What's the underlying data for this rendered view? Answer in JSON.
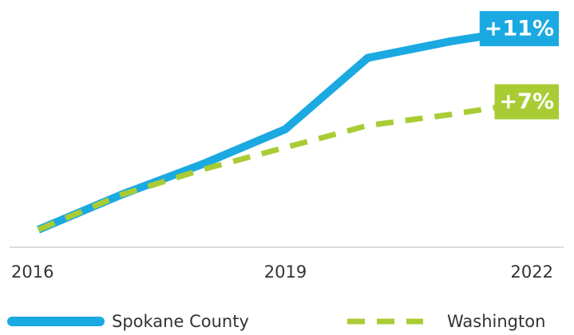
{
  "chart_data": {
    "type": "line",
    "x": [
      2016,
      2017,
      2018,
      2019,
      2020,
      2021,
      2022
    ],
    "xlim": [
      2016,
      2022
    ],
    "xticks": [
      2016,
      2019,
      2022
    ],
    "ylim": [
      0,
      12
    ],
    "series": [
      {
        "name": "Spokane County",
        "color": "#1ba9e1",
        "dash": false,
        "values": [
          0,
          1.9,
          3.6,
          5.5,
          9.4,
          10.3,
          11
        ],
        "value_labels": [
          null,
          null,
          null,
          null,
          null,
          null,
          "+11%"
        ]
      },
      {
        "name": "Washington",
        "color": "#a9cc35",
        "dash": true,
        "values": [
          0,
          1.9,
          3.3,
          4.5,
          5.7,
          6.3,
          7
        ],
        "value_labels": [
          null,
          null,
          null,
          null,
          null,
          null,
          "+7%"
        ]
      }
    ]
  }
}
